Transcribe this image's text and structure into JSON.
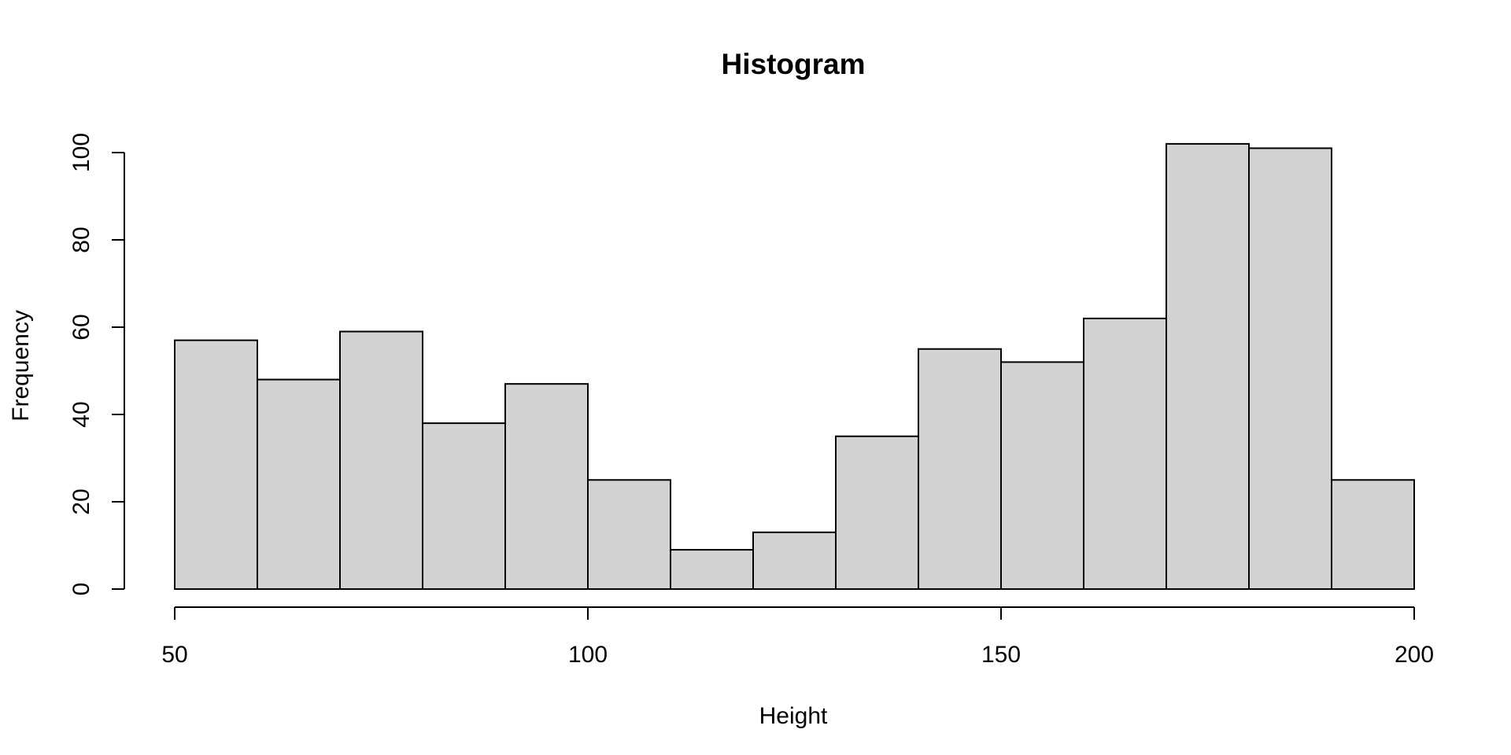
{
  "chart_data": {
    "type": "bar",
    "title": "Histogram",
    "xlabel": "Height",
    "ylabel": "Frequency",
    "bins": [
      {
        "start": 50,
        "end": 60,
        "count": 57
      },
      {
        "start": 60,
        "end": 70,
        "count": 48
      },
      {
        "start": 70,
        "end": 80,
        "count": 59
      },
      {
        "start": 80,
        "end": 90,
        "count": 38
      },
      {
        "start": 90,
        "end": 100,
        "count": 47
      },
      {
        "start": 100,
        "end": 110,
        "count": 25
      },
      {
        "start": 110,
        "end": 120,
        "count": 9
      },
      {
        "start": 120,
        "end": 130,
        "count": 13
      },
      {
        "start": 130,
        "end": 140,
        "count": 35
      },
      {
        "start": 140,
        "end": 150,
        "count": 55
      },
      {
        "start": 150,
        "end": 160,
        "count": 52
      },
      {
        "start": 160,
        "end": 170,
        "count": 62
      },
      {
        "start": 170,
        "end": 180,
        "count": 102
      },
      {
        "start": 180,
        "end": 190,
        "count": 101
      },
      {
        "start": 190,
        "end": 200,
        "count": 25
      }
    ],
    "xlim": [
      50,
      200
    ],
    "ylim": [
      0,
      100
    ],
    "x_ticks": [
      50,
      100,
      150,
      200
    ],
    "y_ticks": [
      0,
      20,
      40,
      60,
      80,
      100
    ],
    "grid": false,
    "legend": "none",
    "bar_color": "#d3d3d3",
    "edge_color": "#000000"
  }
}
